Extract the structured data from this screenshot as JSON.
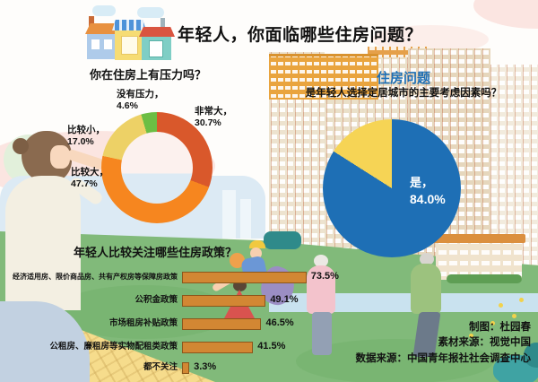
{
  "title": "年轻人，你面临哪些住房问题？",
  "chart_data": [
    {
      "type": "pie",
      "subtype": "donut",
      "title": "你在住房上有压力吗？",
      "categories": [
        "非常大",
        "比较大",
        "比较小",
        "没有压力"
      ],
      "values": [
        30.7,
        47.7,
        17.0,
        4.6
      ],
      "colors": [
        "#D9582B",
        "#F6861F",
        "#EDD166",
        "#6CBE44"
      ],
      "unit": "%",
      "point_labels": [
        {
          "t": "非常大，",
          "p": "30.7%"
        },
        {
          "t": "比较大，",
          "p": "47.7%"
        },
        {
          "t": "比较小，",
          "p": "17.0%"
        },
        {
          "t": "没有压力，",
          "p": "4.6%"
        }
      ]
    },
    {
      "type": "pie",
      "title": "住房问题",
      "subtitle": "是年轻人选择定居城市的主要考虑因素吗？",
      "categories": [
        "是",
        ""
      ],
      "values": [
        84.0,
        16.0
      ],
      "colors": [
        "#1E6FB5",
        "#F6D455"
      ],
      "unit": "%",
      "point_labels": [
        {
          "t": "是，",
          "p": "84.0%"
        }
      ]
    },
    {
      "type": "bar",
      "orientation": "horizontal",
      "title": "年轻人比较关注哪些住房政策？",
      "categories": [
        "经济适用房、限价商品房、共有产权房等保障房政策",
        "公积金政策",
        "市场租房补贴政策",
        "公租房、廉租房等实物配租类政策",
        "都不关注"
      ],
      "values": [
        73.5,
        49.1,
        46.5,
        41.5,
        3.3
      ],
      "value_labels": [
        "73.5%",
        "49.1%",
        "46.5%",
        "41.5%",
        "3.3%"
      ],
      "bar_color": "#D28733",
      "bar_border": "#8C561B",
      "xlim": [
        0,
        80
      ]
    }
  ],
  "credits": {
    "line1": "制图：杜园春",
    "line2": "素材来源：视觉中国",
    "line3": "数据来源：中国青年报社社会调查中心"
  }
}
